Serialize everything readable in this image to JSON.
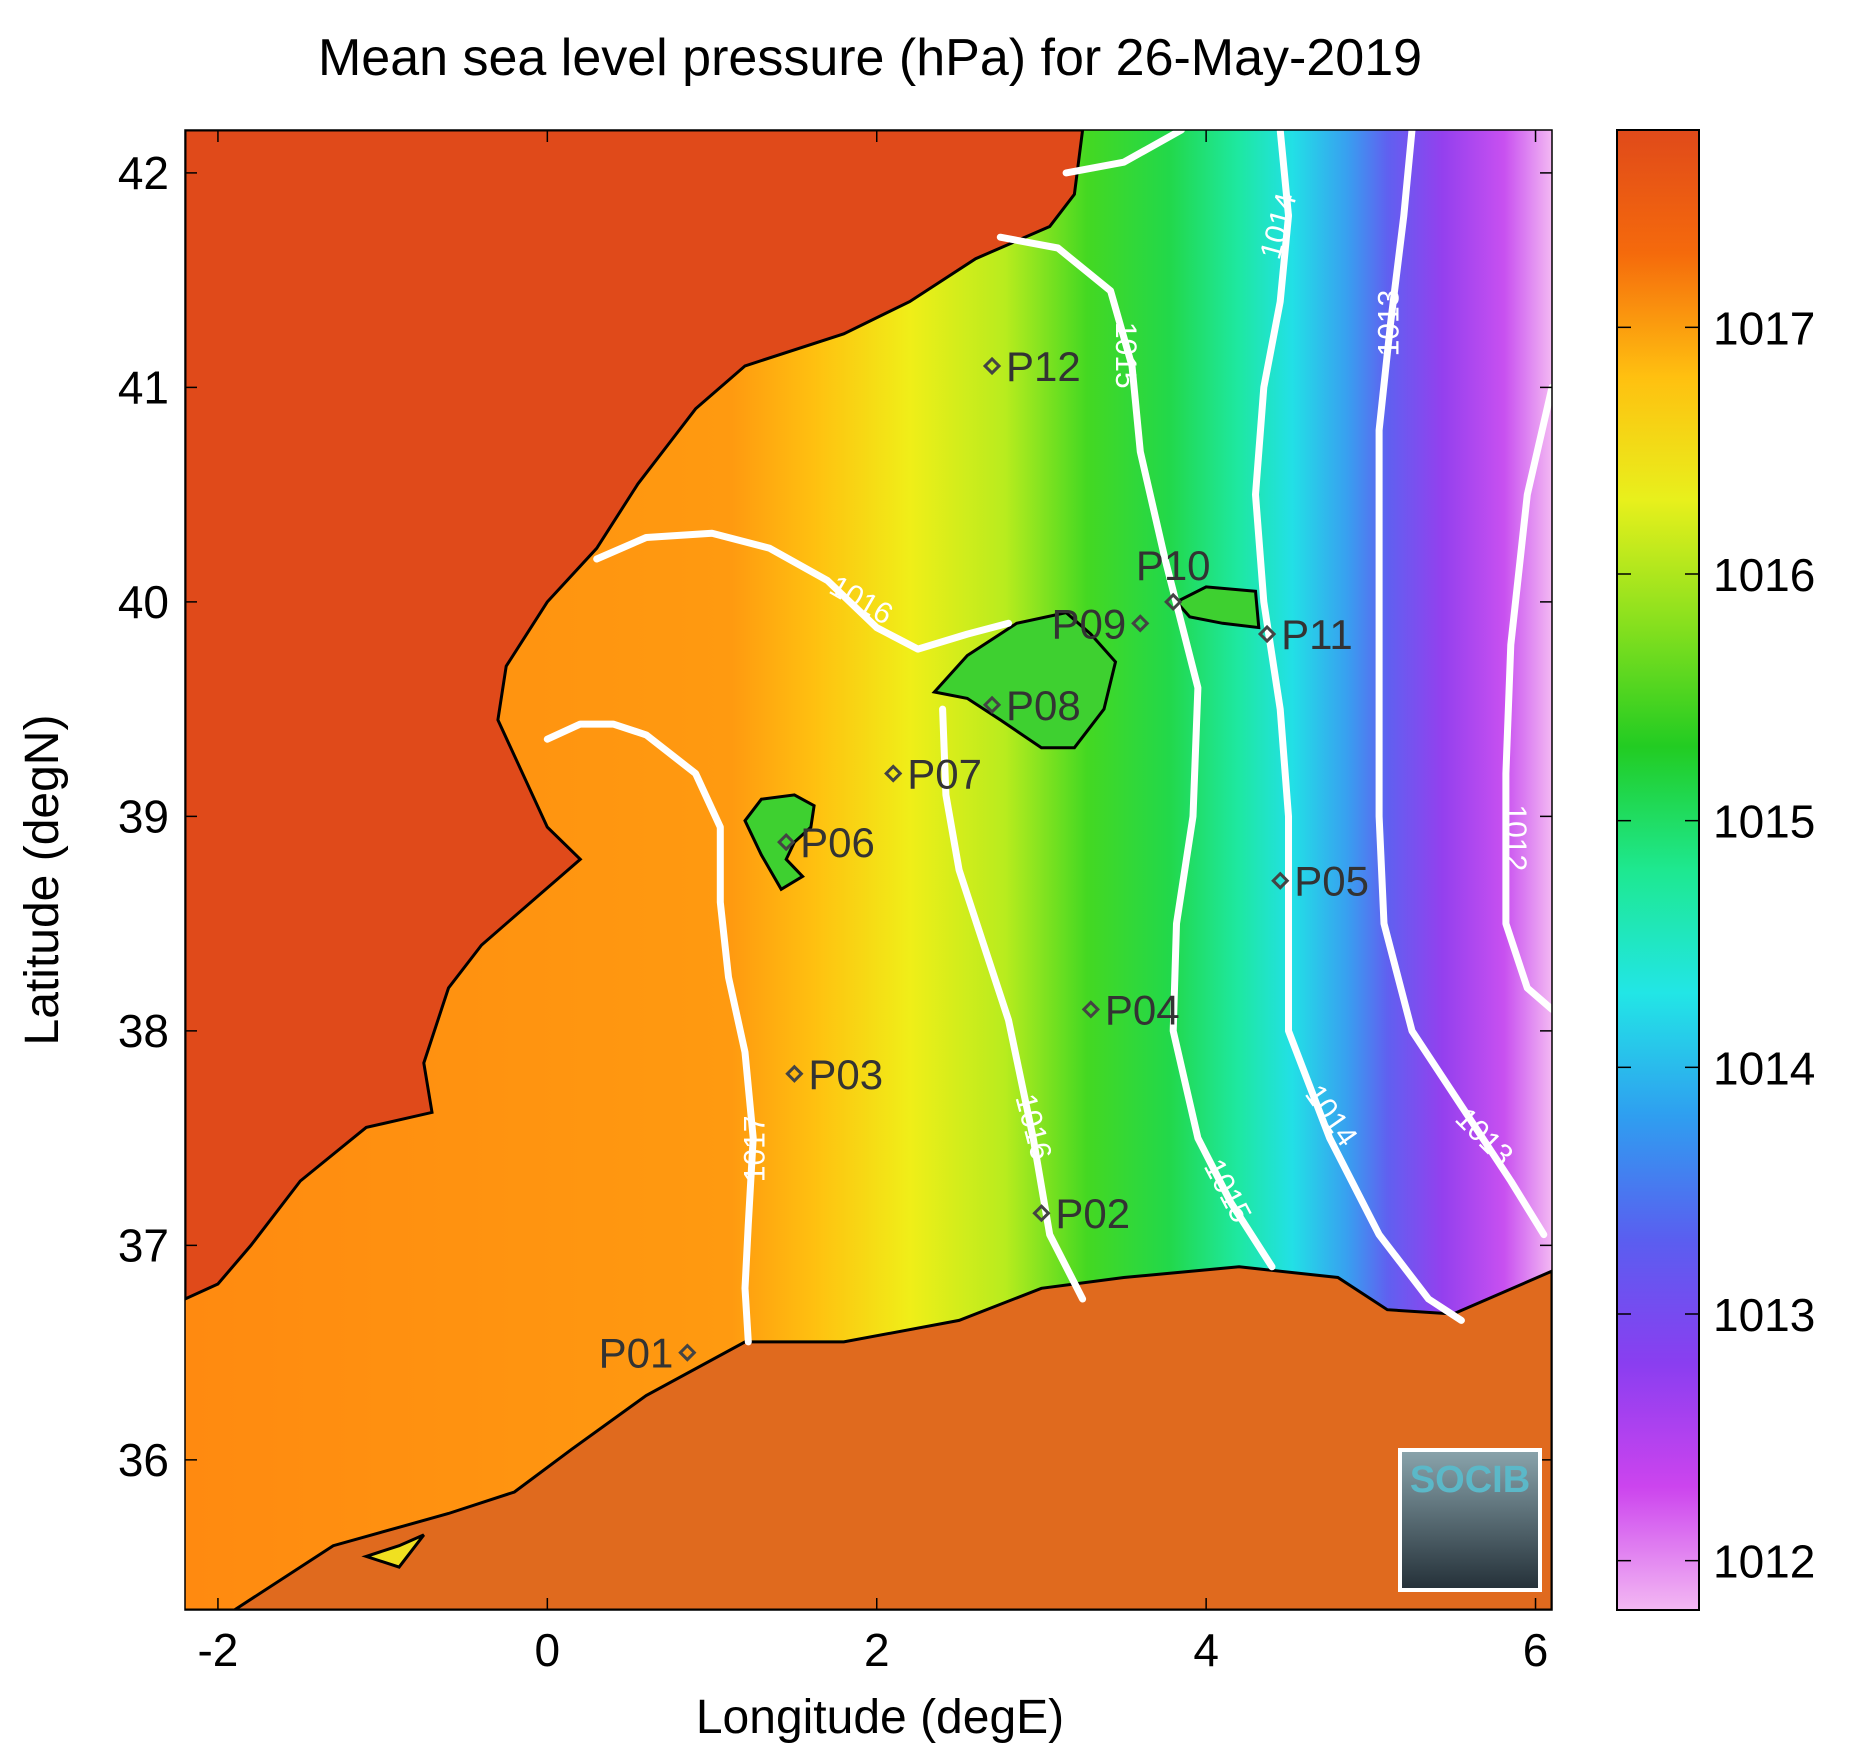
{
  "title": "Mean sea level pressure (hPa) for 26-May-2019",
  "chart_data": {
    "type": "heatmap",
    "title": "Mean sea level pressure (hPa) for 26-May-2019",
    "xlabel": "Longitude (degE)",
    "ylabel": "Latitude (degN)",
    "xlim": [
      -2.2,
      6.1
    ],
    "ylim": [
      35.3,
      42.2
    ],
    "xticks": [
      -2,
      0,
      2,
      4,
      6
    ],
    "yticks": [
      36,
      37,
      38,
      39,
      40,
      41,
      42
    ],
    "colorbar": {
      "range": [
        1011.8,
        1017.8
      ],
      "ticks": [
        1012,
        1013,
        1014,
        1015,
        1016,
        1017
      ],
      "colors": [
        "#f3b8f3",
        "#cc44ee",
        "#8a3ef0",
        "#5a5ef0",
        "#2f9ef0",
        "#22e6e6",
        "#1ee890",
        "#22cc22",
        "#88e01e",
        "#e8f01c",
        "#ffc010",
        "#f56a0c",
        "#e04a1a"
      ]
    },
    "contours": [
      {
        "level": 1017,
        "label": "1017",
        "points": [
          [
            0.0,
            39.36
          ],
          [
            0.2,
            39.43
          ],
          [
            0.4,
            39.43
          ],
          [
            0.6,
            39.38
          ],
          [
            0.9,
            39.2
          ],
          [
            1.05,
            38.95
          ],
          [
            1.05,
            38.6
          ],
          [
            1.1,
            38.25
          ],
          [
            1.2,
            37.9
          ],
          [
            1.25,
            37.5
          ],
          [
            1.22,
            37.1
          ],
          [
            1.2,
            36.8
          ],
          [
            1.22,
            36.55
          ]
        ],
        "labels": [
          {
            "text": "1017",
            "lon": 1.27,
            "lat": 37.45,
            "angle": -90
          }
        ]
      },
      {
        "level": 1016,
        "label": "1016",
        "points": [
          [
            0.3,
            40.2
          ],
          [
            0.6,
            40.3
          ],
          [
            1.0,
            40.32
          ],
          [
            1.35,
            40.25
          ],
          [
            1.7,
            40.1
          ],
          [
            2.0,
            39.88
          ],
          [
            2.25,
            39.78
          ],
          [
            2.55,
            39.85
          ],
          [
            2.8,
            39.9
          ]
        ],
        "labels": [
          {
            "text": "1016",
            "lon": 1.9,
            "lat": 40.0,
            "angle": 30
          }
        ]
      },
      {
        "level": 1016,
        "label": "1016",
        "points": [
          [
            2.4,
            39.5
          ],
          [
            2.42,
            39.1
          ],
          [
            2.5,
            38.75
          ],
          [
            2.65,
            38.4
          ],
          [
            2.8,
            38.05
          ],
          [
            2.95,
            37.5
          ],
          [
            3.05,
            37.05
          ],
          [
            3.25,
            36.75
          ]
        ],
        "labels": [
          {
            "text": "1016",
            "lon": 2.94,
            "lat": 37.55,
            "angle": 75
          }
        ]
      },
      {
        "level": 1015,
        "label": "1015",
        "points": [
          [
            2.75,
            41.7
          ],
          [
            3.1,
            41.65
          ],
          [
            3.42,
            41.45
          ],
          [
            3.55,
            41.1
          ],
          [
            3.6,
            40.7
          ],
          [
            3.75,
            40.2
          ],
          [
            3.95,
            39.6
          ],
          [
            3.92,
            39.0
          ],
          [
            3.82,
            38.5
          ],
          [
            3.8,
            38.0
          ],
          [
            3.95,
            37.5
          ],
          [
            4.15,
            37.2
          ],
          [
            4.4,
            36.9
          ]
        ],
        "labels": [
          {
            "text": "1015",
            "lon": 3.5,
            "lat": 41.15,
            "angle": 90
          },
          {
            "text": "1015",
            "lon": 4.12,
            "lat": 37.25,
            "angle": 62
          }
        ]
      },
      {
        "level": 1015,
        "label": "1015",
        "points": [
          [
            3.15,
            42.0
          ],
          [
            3.5,
            42.05
          ],
          [
            3.85,
            42.2
          ]
        ]
      },
      {
        "level": 1014,
        "label": "1014",
        "points": [
          [
            4.45,
            42.2
          ],
          [
            4.5,
            41.8
          ],
          [
            4.45,
            41.4
          ],
          [
            4.35,
            41.0
          ],
          [
            4.3,
            40.5
          ],
          [
            4.35,
            40.0
          ],
          [
            4.45,
            39.5
          ],
          [
            4.5,
            39.0
          ],
          [
            4.5,
            38.5
          ],
          [
            4.5,
            38.0
          ],
          [
            4.75,
            37.5
          ],
          [
            5.05,
            37.05
          ],
          [
            5.35,
            36.75
          ],
          [
            5.55,
            36.65
          ]
        ],
        "labels": [
          {
            "text": "1014",
            "lon": 4.45,
            "lat": 41.75,
            "angle": -75
          },
          {
            "text": "1014",
            "lon": 4.75,
            "lat": 37.6,
            "angle": 55
          }
        ]
      },
      {
        "level": 1013,
        "label": "1013",
        "points": [
          [
            5.25,
            42.2
          ],
          [
            5.2,
            41.8
          ],
          [
            5.12,
            41.3
          ],
          [
            5.05,
            40.8
          ],
          [
            5.05,
            40.0
          ],
          [
            5.05,
            39.0
          ],
          [
            5.08,
            38.5
          ],
          [
            5.25,
            38.0
          ],
          [
            5.55,
            37.65
          ],
          [
            5.85,
            37.3
          ],
          [
            6.05,
            37.05
          ]
        ],
        "labels": [
          {
            "text": "1013",
            "lon": 5.12,
            "lat": 41.3,
            "angle": -90
          },
          {
            "text": "1013",
            "lon": 5.68,
            "lat": 37.5,
            "angle": 45
          }
        ]
      },
      {
        "level": 1012,
        "label": "1012",
        "points": [
          [
            6.1,
            41.0
          ],
          [
            5.95,
            40.5
          ],
          [
            5.85,
            39.8
          ],
          [
            5.82,
            39.2
          ],
          [
            5.82,
            38.5
          ],
          [
            5.95,
            38.2
          ],
          [
            6.1,
            38.1
          ]
        ],
        "labels": [
          {
            "text": "1012",
            "lon": 5.87,
            "lat": 38.9,
            "angle": 90
          }
        ]
      }
    ],
    "stations": [
      {
        "id": "P01",
        "lon": 0.85,
        "lat": 36.5,
        "label_side": "left"
      },
      {
        "id": "P02",
        "lon": 3.0,
        "lat": 37.15,
        "label_side": "right"
      },
      {
        "id": "P03",
        "lon": 1.5,
        "lat": 37.8,
        "label_side": "right"
      },
      {
        "id": "P04",
        "lon": 3.3,
        "lat": 38.1,
        "label_side": "right"
      },
      {
        "id": "P05",
        "lon": 4.45,
        "lat": 38.7,
        "label_side": "right"
      },
      {
        "id": "P06",
        "lon": 1.45,
        "lat": 38.88,
        "label_side": "right"
      },
      {
        "id": "P07",
        "lon": 2.1,
        "lat": 39.2,
        "label_side": "right"
      },
      {
        "id": "P08",
        "lon": 2.7,
        "lat": 39.52,
        "label_side": "right"
      },
      {
        "id": "P09",
        "lon": 3.6,
        "lat": 39.9,
        "label_side": "left"
      },
      {
        "id": "P10",
        "lon": 3.8,
        "lat": 40.0,
        "label_side": "above"
      },
      {
        "id": "P11",
        "lon": 4.37,
        "lat": 39.85,
        "label_side": "right"
      },
      {
        "id": "P12",
        "lon": 2.7,
        "lat": 41.1,
        "label_side": "right"
      }
    ]
  },
  "logo": {
    "text": "SOCIB"
  },
  "colors": {
    "coastline": "#000000",
    "contour": "#ffffff",
    "station_marker": "#444444",
    "land_iberia": "#e04a1a",
    "land_africa": "#e06a1e",
    "logo_text": "#5bb8c8",
    "logo_bg_top": "#8aa4ac",
    "logo_bg_bottom": "#243038"
  }
}
